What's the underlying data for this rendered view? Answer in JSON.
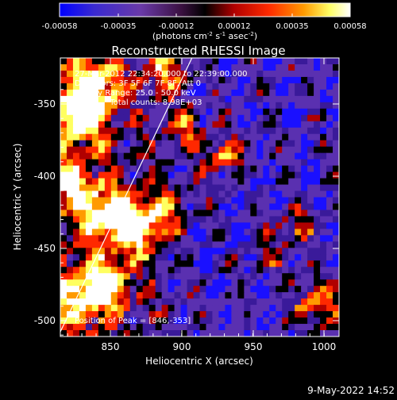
{
  "colorbar": {
    "tick_labels": [
      "-0.00058",
      "-0.00035",
      "-0.00012",
      "0.00012",
      "0.00035",
      "0.00058"
    ],
    "units_label_parts": [
      "(photons cm",
      "-2",
      " s",
      "-1",
      " asec",
      "-2",
      ")"
    ]
  },
  "title": "Reconstructed RHESSI Image",
  "info_lines": [
    "27-Mar-2012 22:34:20.000 to 22:39:00.000",
    "Detectors: 3F 5F 6F 7F 8F, Att 0",
    "Energy Range: 25.0 - 50.0 keV",
    "Clean     Total counts: 8.98E+03"
  ],
  "peak_label": "Position of Peak = [846,-353]",
  "axes": {
    "xlabel": "Heliocentric X (arcsec)",
    "ylabel": "Heliocentric Y (arcsec)",
    "x_ticks": [
      "850",
      "900",
      "950",
      "1000"
    ],
    "y_ticks": [
      "-350",
      "-400",
      "-450",
      "-500"
    ]
  },
  "footer_date": "9-May-2022 14:52",
  "colors": {
    "background": "#000000",
    "limb_line": "#ffffff",
    "colormap": [
      "#000000",
      "#3a1a9a",
      "#5a30b0",
      "#1a10ff",
      "#000000",
      "#b00000",
      "#ff2800",
      "#ff9a00",
      "#ffff60",
      "#ffffff"
    ]
  }
}
